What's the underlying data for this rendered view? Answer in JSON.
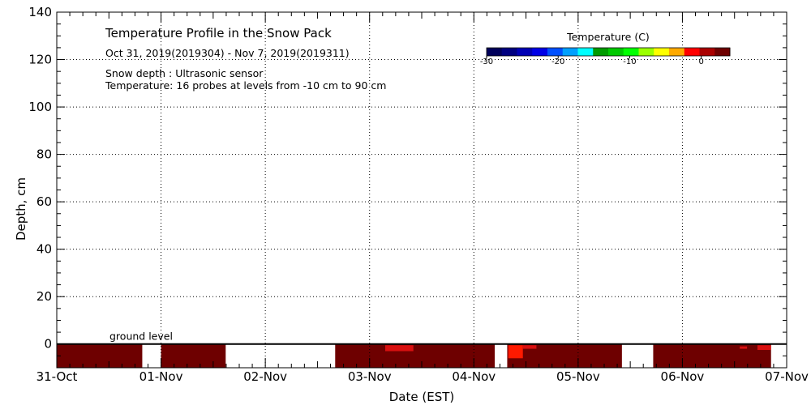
{
  "colors": {
    "background": "#ffffff",
    "axis": "#000000",
    "grid": "#000000",
    "data_warm": "#6e0000",
    "data_hot": "#ff1a00",
    "data_mid": "#d81010"
  },
  "chart_data": {
    "type": "heatmap",
    "title": "Temperature Profile in the Snow Pack",
    "subtitle": "Oct 31, 2019(2019304) - Nov  7, 2019(2019311)",
    "notes": [
      "Snow depth : Ultrasonic sensor",
      "Temperature: 16 probes at levels from -10 cm to 90 cm"
    ],
    "xlabel": "Date (EST)",
    "ylabel": "Depth, cm",
    "x_tick_labels": [
      "31-Oct",
      "01-Nov",
      "02-Nov",
      "03-Nov",
      "04-Nov",
      "05-Nov",
      "06-Nov",
      "07-Nov"
    ],
    "xlim": [
      0,
      7
    ],
    "ylim": [
      -10,
      140
    ],
    "y_ticks": [
      0,
      20,
      40,
      60,
      80,
      100,
      120,
      140
    ],
    "grid": true,
    "ground_level": {
      "depth": 0,
      "label": "ground level"
    },
    "colorbar": {
      "title": "Temperature (C)",
      "ticks": [
        -30,
        -20,
        -10,
        0
      ],
      "tick_labels": [
        "-30",
        "-20",
        "-10",
        "0"
      ],
      "range": [
        -30,
        4
      ],
      "colors": [
        "#00005a",
        "#000080",
        "#0000b4",
        "#0000e6",
        "#0050ff",
        "#00a0ff",
        "#00ffff",
        "#009b00",
        "#00c800",
        "#00ff00",
        "#9bff00",
        "#ffff00",
        "#ffaa00",
        "#ff0000",
        "#aa0000",
        "#6e0000"
      ],
      "placement": "top-right"
    },
    "segments": [
      {
        "start": 0.0,
        "end": 0.82,
        "temperature": 2,
        "depth_top": 0,
        "depth_bottom": -10
      },
      {
        "start": 1.0,
        "end": 1.62,
        "temperature": 2,
        "depth_top": 0,
        "depth_bottom": -10
      },
      {
        "start": 2.67,
        "end": 4.2,
        "temperature": 2,
        "depth_top": 0,
        "depth_bottom": -10
      },
      {
        "start": 4.32,
        "end": 5.42,
        "temperature": 2,
        "depth_top": 0,
        "depth_bottom": -10
      },
      {
        "start": 5.72,
        "end": 6.85,
        "temperature": 2,
        "depth_top": 0,
        "depth_bottom": -10
      }
    ],
    "warm_patches": [
      {
        "start": 3.15,
        "end": 3.42,
        "temperature": 0,
        "depth_top": -0.5,
        "depth_bottom": -3
      },
      {
        "start": 4.33,
        "end": 4.47,
        "temperature": -1,
        "depth_top": -0.5,
        "depth_bottom": -6
      },
      {
        "start": 4.47,
        "end": 4.6,
        "temperature": 0,
        "depth_top": -0.5,
        "depth_bottom": -2
      },
      {
        "start": 6.55,
        "end": 6.62,
        "temperature": 0,
        "depth_top": -1,
        "depth_bottom": -2
      },
      {
        "start": 6.72,
        "end": 6.85,
        "temperature": 0,
        "depth_top": -0.5,
        "depth_bottom": -2.5
      }
    ]
  }
}
